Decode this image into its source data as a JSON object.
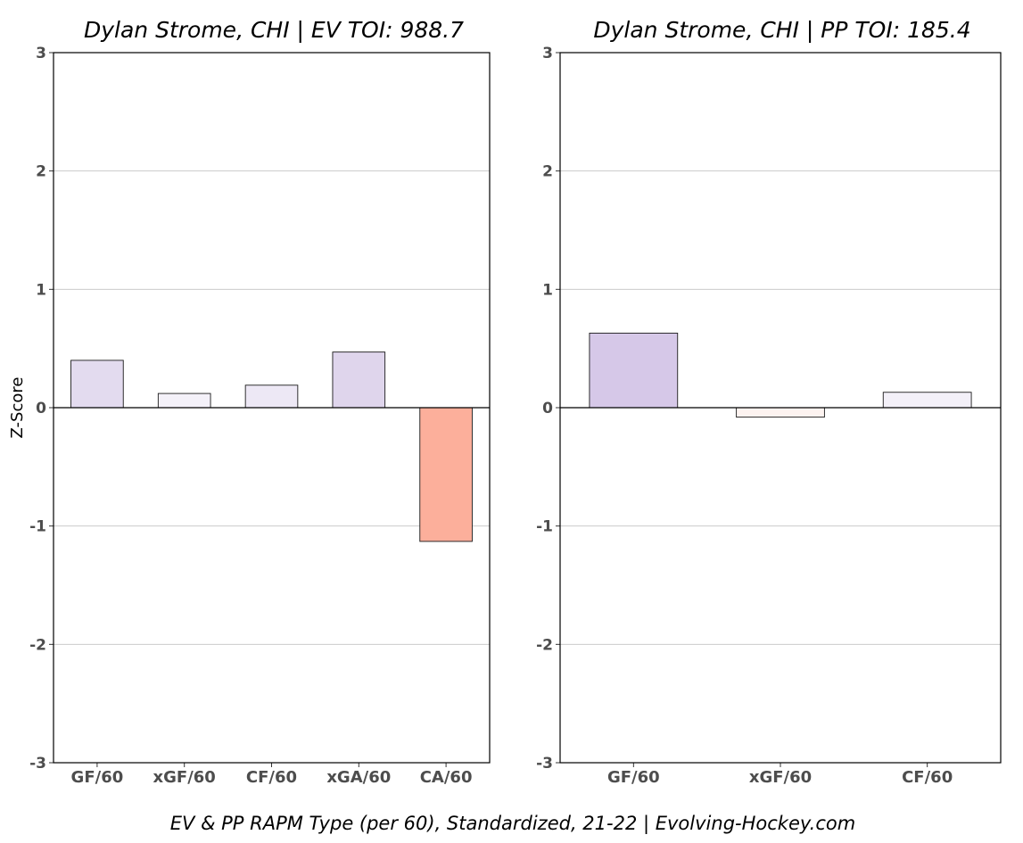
{
  "caption": "EV & PP RAPM Type (per 60), Standardized, 21-22    |    Evolving-Hockey.com",
  "chart_data": [
    {
      "type": "bar",
      "title": "Dylan Strome, CHI  |  EV TOI: 988.7",
      "ylabel": "Z-Score",
      "ylim": [
        -3,
        3
      ],
      "yticks": [
        -3,
        -2,
        -1,
        0,
        1,
        2,
        3
      ],
      "grid": true,
      "categories": [
        "GF/60",
        "xGF/60",
        "CF/60",
        "xGA/60",
        "CA/60"
      ],
      "values": [
        0.4,
        0.12,
        0.19,
        0.47,
        -1.13
      ],
      "colors": [
        "#e3dbef",
        "#f4f1f9",
        "#ede8f5",
        "#dfd5ec",
        "#fcaf9b"
      ]
    },
    {
      "type": "bar",
      "title": "Dylan Strome, CHI  |  PP TOI: 185.4",
      "ylabel": "",
      "ylim": [
        -3,
        3
      ],
      "yticks": [
        -3,
        -2,
        -1,
        0,
        1,
        2,
        3
      ],
      "grid": true,
      "categories": [
        "GF/60",
        "xGF/60",
        "CF/60"
      ],
      "values": [
        0.63,
        -0.08,
        0.13
      ],
      "colors": [
        "#d6c8e8",
        "#fdf3f0",
        "#f3f0f8"
      ]
    }
  ]
}
